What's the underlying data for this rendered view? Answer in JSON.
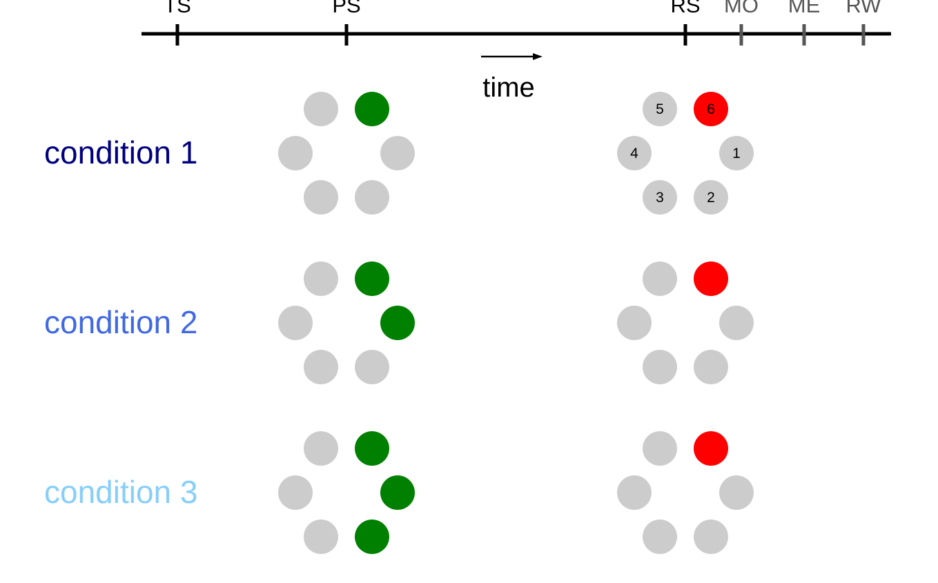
{
  "timeline": {
    "events": [
      {
        "label": "TS",
        "color": "#000000"
      },
      {
        "label": "PS",
        "color": "#000000"
      },
      {
        "label": "RS",
        "color": "#000000"
      },
      {
        "label": "MO",
        "color": "#555555"
      },
      {
        "label": "ME",
        "color": "#555555"
      },
      {
        "label": "RW",
        "color": "#555555"
      }
    ],
    "axis_label": "time"
  },
  "colors": {
    "inactive": "#cccccc",
    "cue": "#008000",
    "target": "#ff0000",
    "axis": "#000000"
  },
  "conditions": [
    {
      "label": "condition 1",
      "label_color": "#000080",
      "preparatory_active": [
        6
      ],
      "response_active": [
        6
      ],
      "response_numbers_shown": true
    },
    {
      "label": "condition 2",
      "label_color": "#4169e1",
      "preparatory_active": [
        6,
        1
      ],
      "response_active": [
        6
      ],
      "response_numbers_shown": false
    },
    {
      "label": "condition 3",
      "label_color": "#87cefa",
      "preparatory_active": [
        6,
        1,
        2
      ],
      "response_active": [
        6
      ],
      "response_numbers_shown": false
    }
  ],
  "target_numbers": [
    "1",
    "2",
    "3",
    "4",
    "5",
    "6"
  ]
}
